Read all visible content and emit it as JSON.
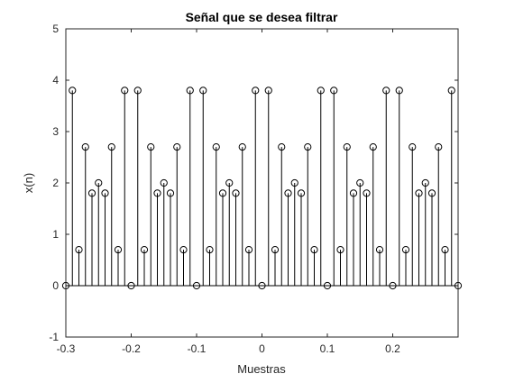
{
  "chart_data": {
    "type": "stem",
    "title": "Señal que se desea filtrar",
    "xlabel": "Muestras",
    "ylabel": "x(n)",
    "xlim": [
      -0.3,
      0.3
    ],
    "ylim": [
      -1,
      5
    ],
    "x_ticks": [
      -0.3,
      -0.2,
      -0.1,
      0,
      0.1,
      0.2
    ],
    "x_tick_labels": [
      "-0.3",
      "-0.2",
      "-0.1",
      "0",
      "0.1",
      "0.2"
    ],
    "y_ticks": [
      -1,
      0,
      1,
      2,
      3,
      4,
      5
    ],
    "y_tick_labels": [
      "-1",
      "0",
      "1",
      "2",
      "3",
      "4",
      "5"
    ],
    "grid": false,
    "marker": "circle",
    "series": [
      {
        "x": [
          -0.3,
          -0.29,
          -0.28,
          -0.27,
          -0.26,
          -0.25,
          -0.24,
          -0.23,
          -0.22,
          -0.21,
          -0.2,
          -0.19,
          -0.18,
          -0.17,
          -0.16,
          -0.15,
          -0.14,
          -0.13,
          -0.12,
          -0.11,
          -0.1,
          -0.09,
          -0.08,
          -0.07,
          -0.06,
          -0.05,
          -0.04,
          -0.03,
          -0.02,
          -0.01,
          0,
          0.01,
          0.02,
          0.03,
          0.04,
          0.05,
          0.06,
          0.07,
          0.08,
          0.09,
          0.1,
          0.11,
          0.12,
          0.13,
          0.14,
          0.15,
          0.16,
          0.17,
          0.18,
          0.19,
          0.2,
          0.21,
          0.22,
          0.23,
          0.24,
          0.25,
          0.26,
          0.27,
          0.28,
          0.29,
          0.3
        ],
        "values": [
          0,
          3.8,
          0.7,
          2.7,
          1.8,
          2,
          1.8,
          2.7,
          0.7,
          3.8,
          0,
          3.8,
          0.7,
          2.7,
          1.8,
          2,
          1.8,
          2.7,
          0.7,
          3.8,
          0,
          3.8,
          0.7,
          2.7,
          1.8,
          2,
          1.8,
          2.7,
          0.7,
          3.8,
          0,
          3.8,
          0.7,
          2.7,
          1.8,
          2,
          1.8,
          2.7,
          0.7,
          3.8,
          0,
          3.8,
          0.7,
          2.7,
          1.8,
          2,
          1.8,
          2.7,
          0.7,
          3.8,
          0,
          3.8,
          0.7,
          2.7,
          1.8,
          2,
          1.8,
          2.7,
          0.7,
          3.8,
          0
        ]
      }
    ]
  }
}
